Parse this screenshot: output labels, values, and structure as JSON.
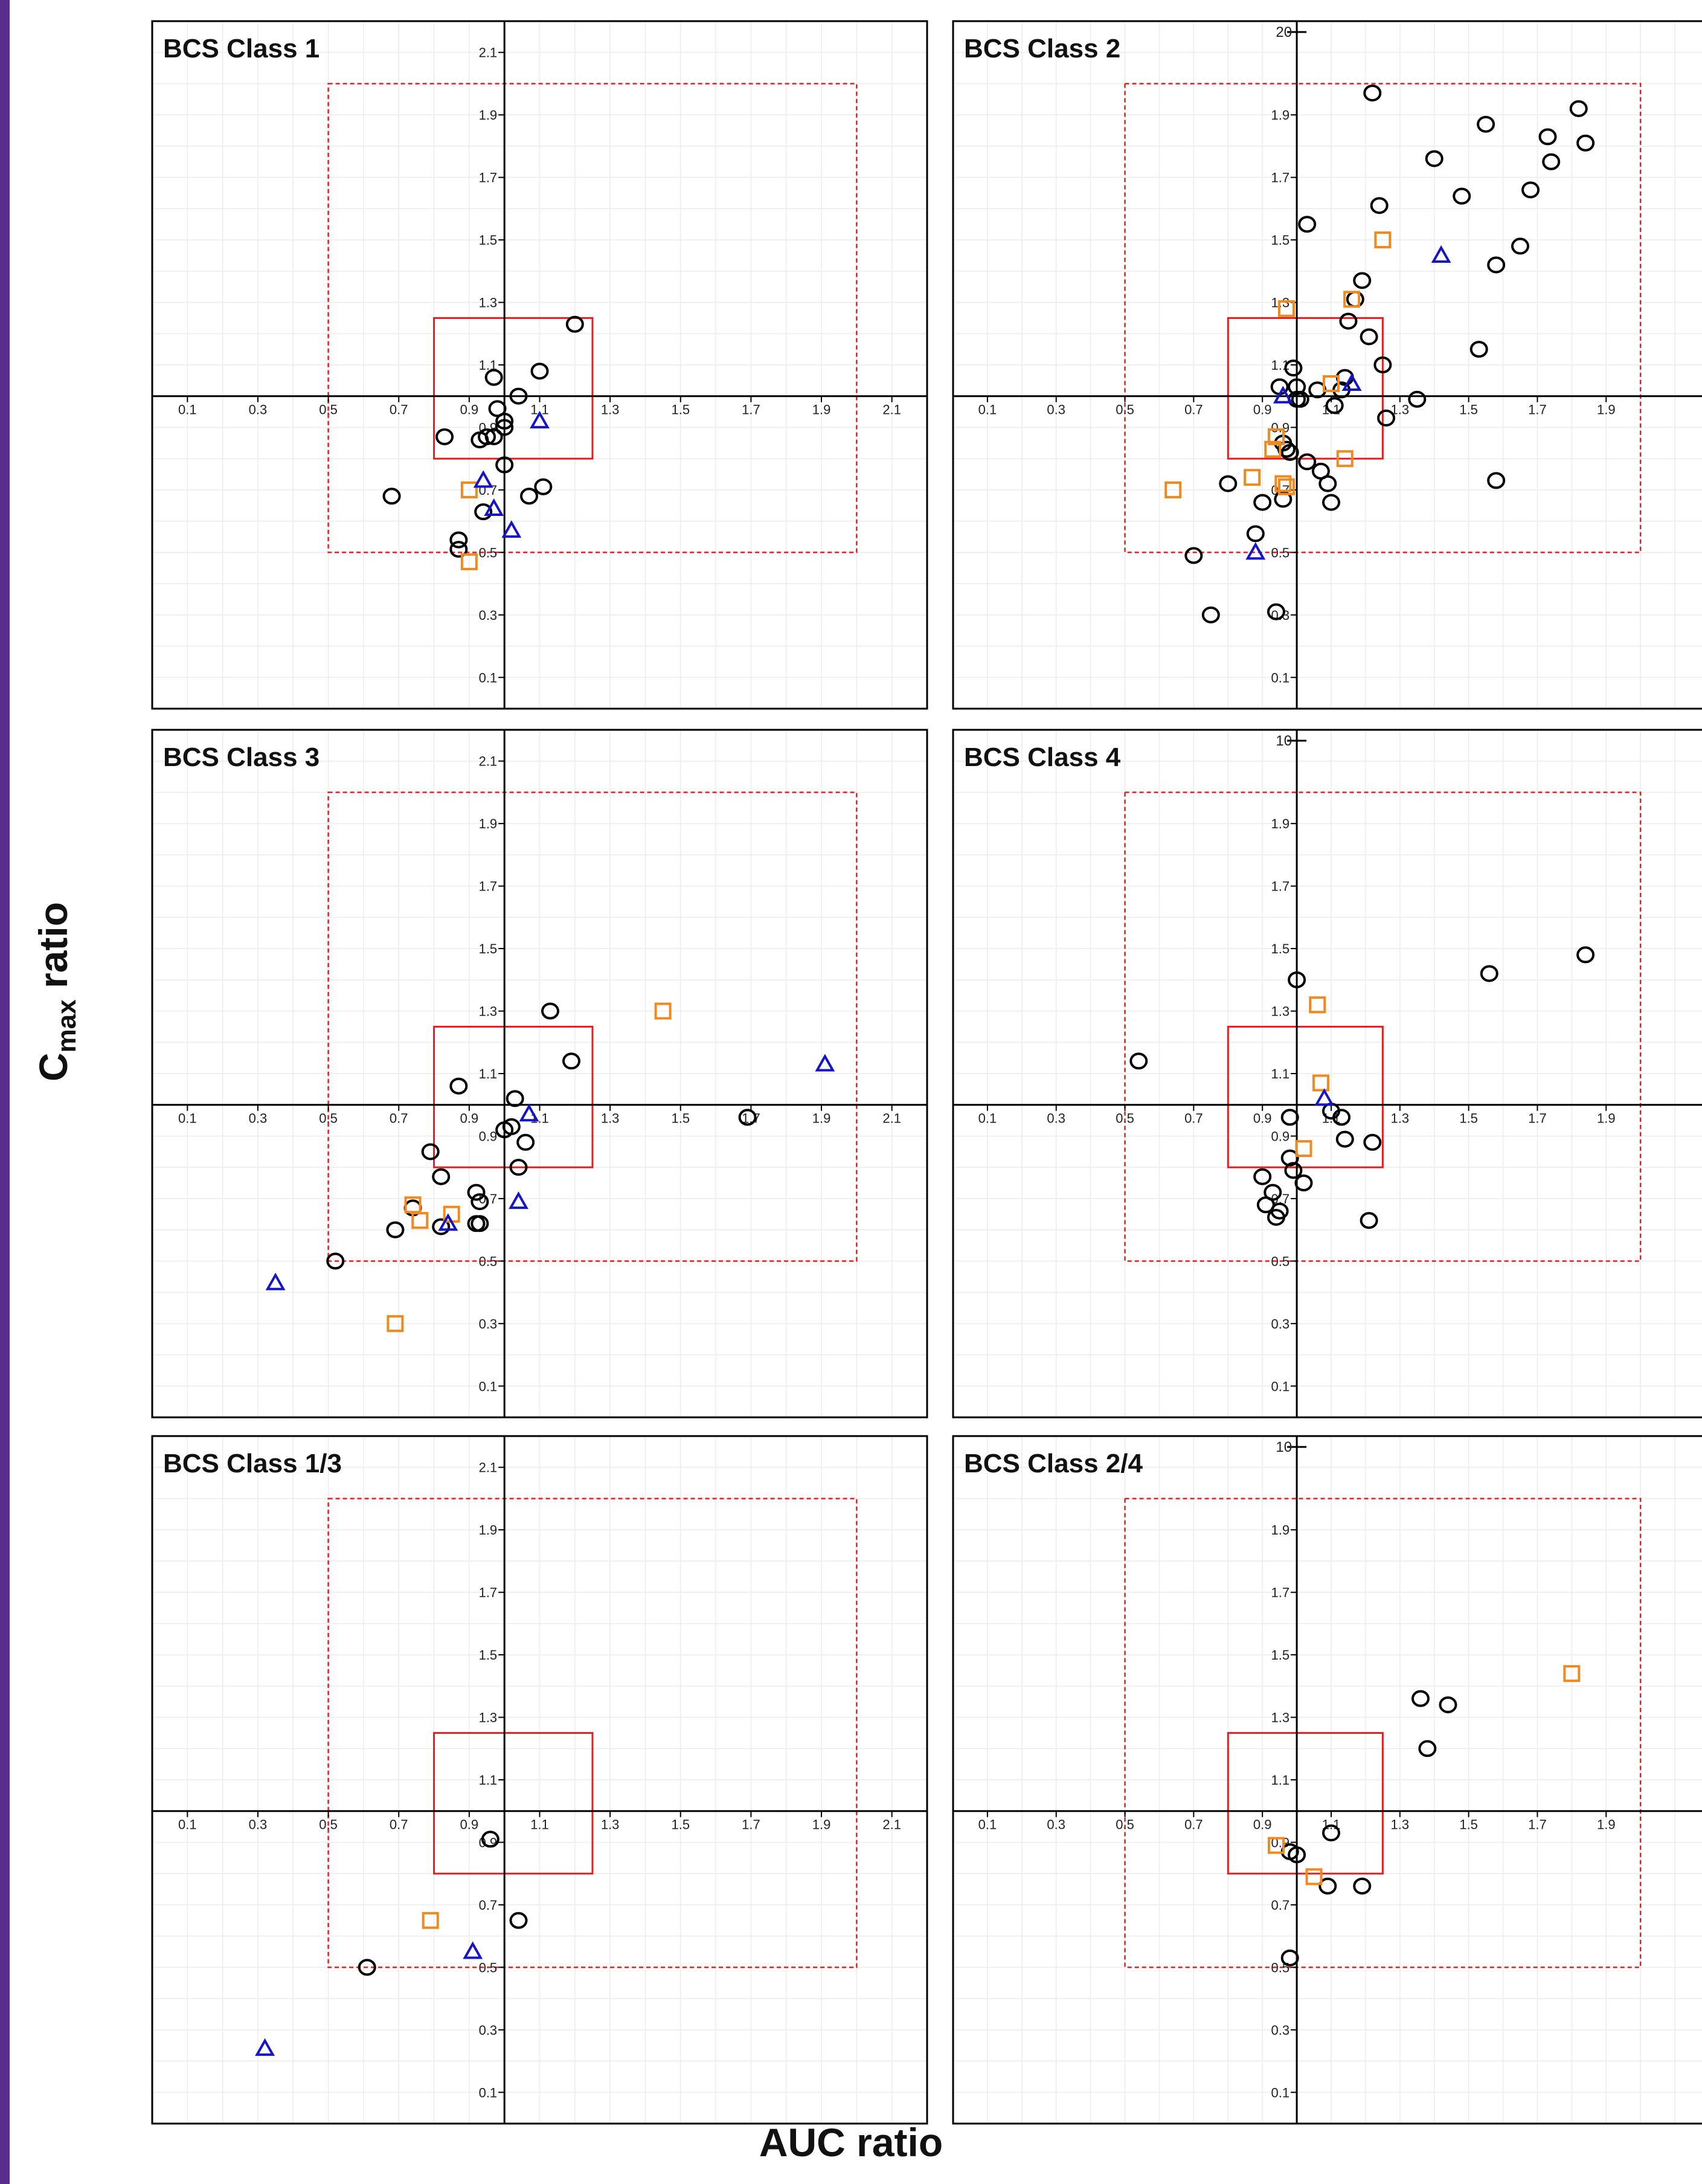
{
  "figure": {
    "ylabel_main": "C",
    "ylabel_sub": "max",
    "ylabel_rest": " ratio",
    "xlabel": "AUC ratio"
  },
  "colors": {
    "circle": "#000000",
    "square": "#f08a1e",
    "triangle": "#1414c8",
    "box": "#e02020"
  },
  "chart_data": [
    {
      "type": "scatter",
      "title": "BCS Class 1",
      "xlim": [
        0,
        2.2
      ],
      "ylim": [
        0,
        2.2
      ],
      "xticks": [
        "0.1",
        "0.3",
        "0.5",
        "0.7",
        "0.9",
        "1.1",
        "1.3",
        "1.5",
        "1.7",
        "1.9",
        "2.1"
      ],
      "yticks": [
        "0.1",
        "0.3",
        "0.5",
        "0.7",
        "0.9",
        "1.1",
        "1.3",
        "1.5",
        "1.7",
        "1.9",
        "2.1"
      ],
      "top_label": "",
      "series": [
        {
          "marker": "circle",
          "points": [
            [
              1.2,
              1.23
            ],
            [
              0.97,
              1.06
            ],
            [
              1.1,
              1.08
            ],
            [
              1.04,
              1.0
            ],
            [
              0.98,
              0.96
            ],
            [
              1.0,
              0.92
            ],
            [
              1.0,
              0.9
            ],
            [
              0.95,
              0.87
            ],
            [
              0.93,
              0.86
            ],
            [
              0.97,
              0.87
            ],
            [
              0.83,
              0.87
            ],
            [
              1.0,
              0.78
            ],
            [
              1.11,
              0.71
            ],
            [
              0.94,
              0.63
            ],
            [
              1.07,
              0.68
            ],
            [
              0.68,
              0.68
            ],
            [
              0.87,
              0.54
            ],
            [
              0.87,
              0.51
            ]
          ]
        },
        {
          "marker": "square",
          "points": [
            [
              0.9,
              0.7
            ],
            [
              0.9,
              0.47
            ]
          ]
        },
        {
          "marker": "triangle",
          "points": [
            [
              1.1,
              0.92
            ],
            [
              0.94,
              0.73
            ],
            [
              0.97,
              0.64
            ],
            [
              1.02,
              0.57
            ]
          ]
        }
      ]
    },
    {
      "type": "scatter",
      "title": "BCS Class 2",
      "xlim": [
        0,
        2.2
      ],
      "ylim": [
        0,
        2.2
      ],
      "xticks": [
        "0.1",
        "0.3",
        "0.5",
        "0.7",
        "0.9",
        "1.1",
        "1.3",
        "1.5",
        "1.7",
        "1.9"
      ],
      "yticks": [
        "0.1",
        "0.3",
        "0.5",
        "0.7",
        "0.9",
        "1.1",
        "1.3",
        "1.5",
        "1.7",
        "1.9"
      ],
      "top_label": "20",
      "series": [
        {
          "marker": "circle",
          "points": [
            [
              1.22,
              1.97
            ],
            [
              1.55,
              1.87
            ],
            [
              1.82,
              1.92
            ],
            [
              1.73,
              1.83
            ],
            [
              1.84,
              1.81
            ],
            [
              1.4,
              1.76
            ],
            [
              1.74,
              1.75
            ],
            [
              1.48,
              1.64
            ],
            [
              1.68,
              1.66
            ],
            [
              1.24,
              1.61
            ],
            [
              1.03,
              1.55
            ],
            [
              1.65,
              1.48
            ],
            [
              1.58,
              1.42
            ],
            [
              1.19,
              1.37
            ],
            [
              1.17,
              1.31
            ],
            [
              1.15,
              1.24
            ],
            [
              1.21,
              1.19
            ],
            [
              1.53,
              1.15
            ],
            [
              1.25,
              1.1
            ],
            [
              0.99,
              1.09
            ],
            [
              1.14,
              1.06
            ],
            [
              0.95,
              1.03
            ],
            [
              1.0,
              1.03
            ],
            [
              1.06,
              1.02
            ],
            [
              1.13,
              1.02
            ],
            [
              1.0,
              0.99
            ],
            [
              1.01,
              0.99
            ],
            [
              1.11,
              0.97
            ],
            [
              1.35,
              0.99
            ],
            [
              1.26,
              0.93
            ],
            [
              0.96,
              0.85
            ],
            [
              0.97,
              0.83
            ],
            [
              0.98,
              0.82
            ],
            [
              1.03,
              0.79
            ],
            [
              1.07,
              0.76
            ],
            [
              1.09,
              0.72
            ],
            [
              0.8,
              0.72
            ],
            [
              0.9,
              0.66
            ],
            [
              0.96,
              0.67
            ],
            [
              1.1,
              0.66
            ],
            [
              0.88,
              0.56
            ],
            [
              1.58,
              0.73
            ],
            [
              0.7,
              0.49
            ],
            [
              0.75,
              0.3
            ],
            [
              0.94,
              0.31
            ]
          ]
        },
        {
          "marker": "square",
          "points": [
            [
              1.25,
              1.5
            ],
            [
              1.16,
              1.31
            ],
            [
              0.97,
              1.28
            ],
            [
              1.1,
              1.04
            ],
            [
              0.93,
              0.83
            ],
            [
              0.94,
              0.87
            ],
            [
              1.14,
              0.8
            ],
            [
              0.87,
              0.74
            ],
            [
              0.96,
              0.72
            ],
            [
              0.97,
              0.71
            ],
            [
              0.64,
              0.7
            ]
          ]
        },
        {
          "marker": "triangle",
          "points": [
            [
              1.42,
              1.45
            ],
            [
              1.16,
              1.04
            ],
            [
              0.96,
              1.0
            ],
            [
              0.88,
              0.5
            ]
          ]
        }
      ]
    },
    {
      "type": "scatter",
      "title": "BCS Class 3",
      "xlim": [
        0,
        2.2
      ],
      "ylim": [
        0,
        2.2
      ],
      "xticks": [
        "0.1",
        "0.3",
        "0.5",
        "0.7",
        "0.9",
        "1.1",
        "1.3",
        "1.5",
        "1.7",
        "1.9",
        "2.1"
      ],
      "yticks": [
        "0.1",
        "0.3",
        "0.5",
        "0.7",
        "0.9",
        "1.1",
        "1.3",
        "1.5",
        "1.7",
        "1.9",
        "2.1"
      ],
      "top_label": "",
      "series": [
        {
          "marker": "circle",
          "points": [
            [
              1.13,
              1.3
            ],
            [
              0.87,
              1.06
            ],
            [
              1.19,
              1.14
            ],
            [
              1.03,
              1.02
            ],
            [
              1.69,
              0.96
            ],
            [
              1.0,
              0.92
            ],
            [
              1.02,
              0.93
            ],
            [
              1.06,
              0.88
            ],
            [
              1.04,
              0.8
            ],
            [
              0.79,
              0.85
            ],
            [
              0.82,
              0.77
            ],
            [
              0.92,
              0.72
            ],
            [
              0.93,
              0.69
            ],
            [
              0.74,
              0.67
            ],
            [
              0.92,
              0.62
            ],
            [
              0.93,
              0.62
            ],
            [
              0.82,
              0.61
            ],
            [
              0.69,
              0.6
            ],
            [
              0.52,
              0.5
            ]
          ]
        },
        {
          "marker": "square",
          "points": [
            [
              1.45,
              1.3
            ],
            [
              0.74,
              0.68
            ],
            [
              0.76,
              0.63
            ],
            [
              0.85,
              0.65
            ],
            [
              0.69,
              0.3
            ]
          ]
        },
        {
          "marker": "triangle",
          "points": [
            [
              1.91,
              1.13
            ],
            [
              1.07,
              0.97
            ],
            [
              1.04,
              0.69
            ],
            [
              0.84,
              0.62
            ],
            [
              0.35,
              0.43
            ]
          ]
        }
      ]
    },
    {
      "type": "scatter",
      "title": "BCS Class 4",
      "xlim": [
        0,
        2.2
      ],
      "ylim": [
        0,
        2.2
      ],
      "xticks": [
        "0.1",
        "0.3",
        "0.5",
        "0.7",
        "0.9",
        "1.1",
        "1.3",
        "1.5",
        "1.7",
        "1.9"
      ],
      "yticks": [
        "0.1",
        "0.3",
        "0.5",
        "0.7",
        "0.9",
        "1.1",
        "1.3",
        "1.5",
        "1.7",
        "1.9"
      ],
      "top_label": "10",
      "series": [
        {
          "marker": "circle",
          "points": [
            [
              1.84,
              1.48
            ],
            [
              1.56,
              1.42
            ],
            [
              1.0,
              1.4
            ],
            [
              0.54,
              1.14
            ],
            [
              0.98,
              0.96
            ],
            [
              1.1,
              0.98
            ],
            [
              1.13,
              0.96
            ],
            [
              1.14,
              0.89
            ],
            [
              1.22,
              0.88
            ],
            [
              0.98,
              0.83
            ],
            [
              0.99,
              0.79
            ],
            [
              1.02,
              0.75
            ],
            [
              0.9,
              0.77
            ],
            [
              0.93,
              0.72
            ],
            [
              0.91,
              0.68
            ],
            [
              0.95,
              0.66
            ],
            [
              0.94,
              0.64
            ],
            [
              1.21,
              0.63
            ]
          ]
        },
        {
          "marker": "square",
          "points": [
            [
              1.06,
              1.32
            ],
            [
              1.07,
              1.07
            ],
            [
              1.02,
              0.86
            ]
          ]
        },
        {
          "marker": "triangle",
          "points": [
            [
              1.08,
              1.02
            ]
          ]
        }
      ]
    },
    {
      "type": "scatter",
      "title": "BCS Class 1/3",
      "xlim": [
        0,
        2.2
      ],
      "ylim": [
        0,
        2.2
      ],
      "xticks": [
        "0.1",
        "0.3",
        "0.5",
        "0.7",
        "0.9",
        "1.1",
        "1.3",
        "1.5",
        "1.7",
        "1.9",
        "2.1"
      ],
      "yticks": [
        "0.1",
        "0.3",
        "0.5",
        "0.7",
        "0.9",
        "1.1",
        "1.3",
        "1.5",
        "1.7",
        "1.9",
        "2.1"
      ],
      "top_label": "",
      "series": [
        {
          "marker": "circle",
          "points": [
            [
              0.96,
              0.91
            ],
            [
              1.04,
              0.65
            ],
            [
              0.61,
              0.5
            ]
          ]
        },
        {
          "marker": "square",
          "points": [
            [
              0.79,
              0.65
            ]
          ]
        },
        {
          "marker": "triangle",
          "points": [
            [
              0.91,
              0.55
            ],
            [
              0.32,
              0.24
            ]
          ]
        }
      ]
    },
    {
      "type": "scatter",
      "title": "BCS Class 2/4",
      "xlim": [
        0,
        2.2
      ],
      "ylim": [
        0,
        2.2
      ],
      "xticks": [
        "0.1",
        "0.3",
        "0.5",
        "0.7",
        "0.9",
        "1.1",
        "1.3",
        "1.5",
        "1.7",
        "1.9"
      ],
      "yticks": [
        "0.1",
        "0.3",
        "0.5",
        "0.7",
        "0.9",
        "1.1",
        "1.3",
        "1.5",
        "1.7",
        "1.9"
      ],
      "top_label": "10",
      "series": [
        {
          "marker": "circle",
          "points": [
            [
              1.36,
              1.36
            ],
            [
              1.44,
              1.34
            ],
            [
              1.38,
              1.2
            ],
            [
              1.1,
              0.93
            ],
            [
              0.98,
              0.87
            ],
            [
              1.0,
              0.86
            ],
            [
              1.09,
              0.76
            ],
            [
              1.19,
              0.76
            ],
            [
              0.98,
              0.53
            ]
          ]
        },
        {
          "marker": "square",
          "points": [
            [
              1.8,
              1.44
            ],
            [
              0.94,
              0.89
            ],
            [
              1.05,
              0.79
            ]
          ]
        },
        {
          "marker": "triangle",
          "points": []
        }
      ]
    }
  ]
}
